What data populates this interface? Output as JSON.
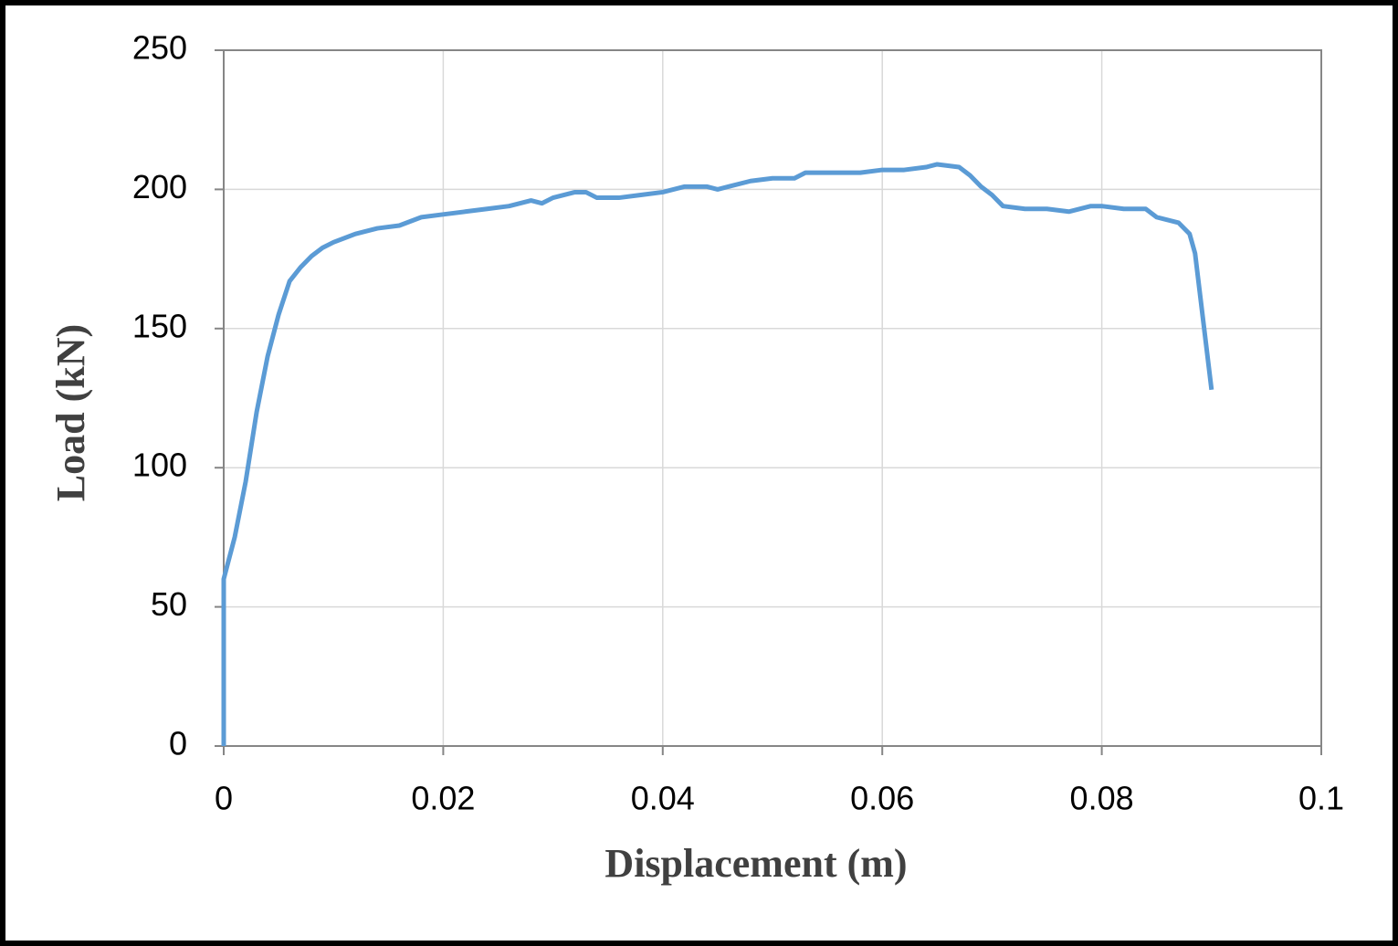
{
  "chart_data": {
    "type": "line",
    "x_label": "Displacement  (m)",
    "y_label": "Load (kN)",
    "x": [
      0,
      0,
      0.001,
      0.002,
      0.003,
      0.004,
      0.005,
      0.006,
      0.007,
      0.008,
      0.009,
      0.01,
      0.012,
      0.014,
      0.016,
      0.018,
      0.02,
      0.022,
      0.024,
      0.026,
      0.028,
      0.029,
      0.03,
      0.032,
      0.033,
      0.034,
      0.036,
      0.038,
      0.04,
      0.042,
      0.044,
      0.045,
      0.046,
      0.048,
      0.05,
      0.052,
      0.053,
      0.055,
      0.058,
      0.06,
      0.062,
      0.064,
      0.065,
      0.067,
      0.068,
      0.069,
      0.07,
      0.071,
      0.073,
      0.075,
      0.077,
      0.079,
      0.08,
      0.082,
      0.083,
      0.084,
      0.085,
      0.087,
      0.088,
      0.0885,
      0.09
    ],
    "series": [
      {
        "color": "#5b9bd5",
        "values": [
          0,
          60,
          75,
          95,
          120,
          140,
          155,
          167,
          172,
          176,
          179,
          181,
          184,
          186,
          187,
          190,
          191,
          192,
          193,
          194,
          196,
          195,
          197,
          199,
          199,
          197,
          197,
          198,
          199,
          201,
          201,
          200,
          201,
          203,
          204,
          204,
          206,
          206,
          206,
          207,
          207,
          208,
          209,
          208,
          205,
          201,
          198,
          194,
          193,
          193,
          192,
          194,
          194,
          193,
          193,
          193,
          190,
          188,
          184,
          177,
          128
        ]
      }
    ],
    "xlim": [
      0,
      0.1
    ],
    "xticks": [
      0,
      0.02,
      0.04,
      0.06,
      0.08,
      0.1
    ],
    "ylim": [
      0,
      250
    ],
    "yticks": [
      0,
      50,
      100,
      150,
      200,
      250
    ],
    "grid": true
  }
}
